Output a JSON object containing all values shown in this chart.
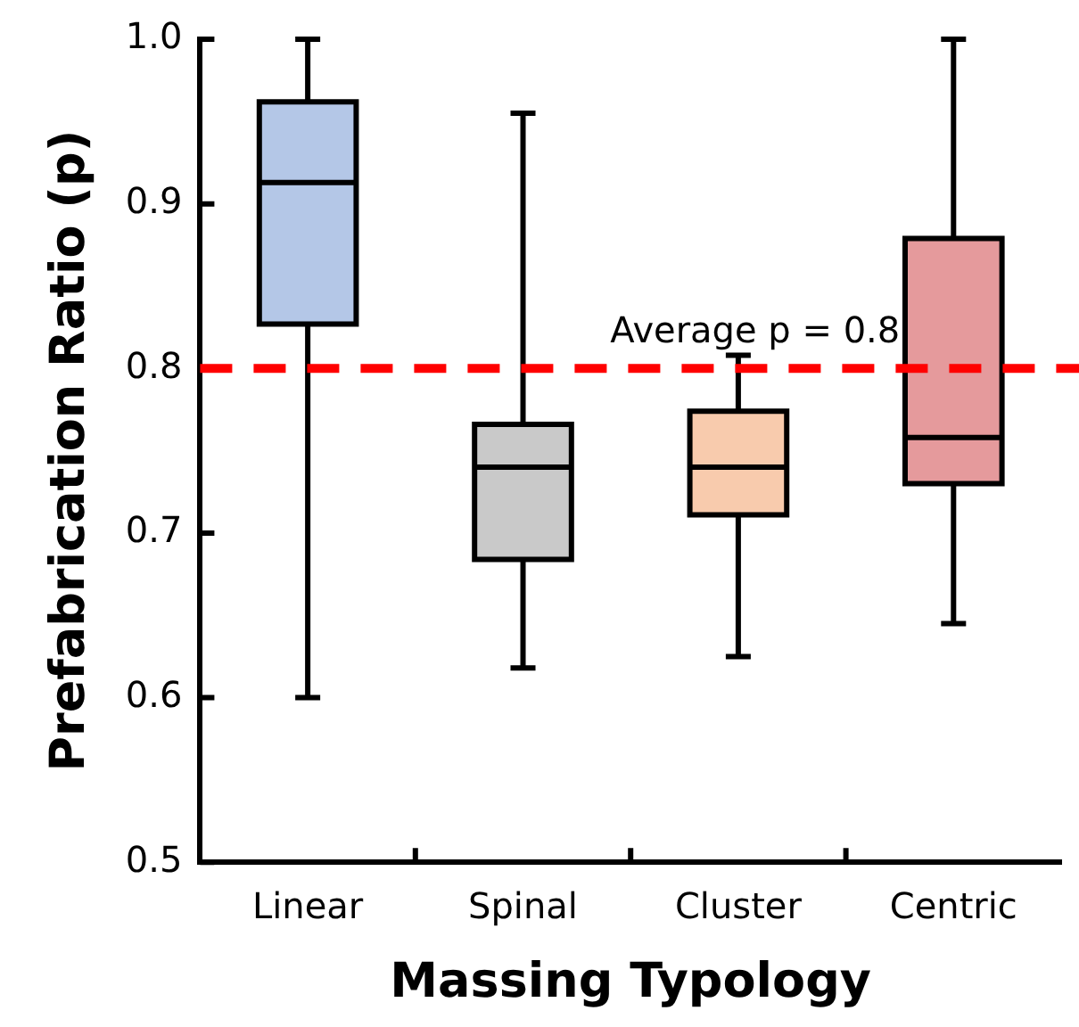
{
  "chart_data": {
    "type": "box",
    "xlabel": "Massing Typology",
    "ylabel": "Prefabrication Ratio (p)",
    "categories": [
      "Linear",
      "Spinal",
      "Cluster",
      "Centric"
    ],
    "colors": [
      "#b4c7e7",
      "#c9c9c9",
      "#f8cbad",
      "#e59a9c"
    ],
    "boxes": [
      {
        "low": 0.6,
        "q1": 0.827,
        "median": 0.913,
        "q3": 0.962,
        "high": 1.0
      },
      {
        "low": 0.618,
        "q1": 0.684,
        "median": 0.74,
        "q3": 0.766,
        "high": 0.955
      },
      {
        "low": 0.625,
        "q1": 0.711,
        "median": 0.74,
        "q3": 0.774,
        "high": 0.808
      },
      {
        "low": 0.645,
        "q1": 0.73,
        "median": 0.758,
        "q3": 0.879,
        "high": 1.0
      }
    ],
    "ylim": [
      0.5,
      1.0
    ],
    "yticks": [
      0.5,
      0.6,
      0.7,
      0.8,
      0.9,
      {
        "value": 1.0,
        "label": "1.0"
      }
    ],
    "ref_lines": [
      {
        "axis": "y",
        "value": 0.8,
        "label": "Average p = 0.8",
        "color": "#ff0000",
        "line_style": "dashed"
      }
    ],
    "grid": false,
    "legend": false
  }
}
